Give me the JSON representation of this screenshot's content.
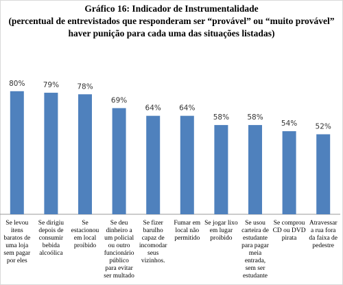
{
  "chart_data": {
    "type": "bar",
    "title": "Gráfico 16: Indicador de Instrumentalidade",
    "subtitle": [
      "(percentual de entrevistados que responderam ser “provável” ou “muito provável”",
      "haver punição para cada uma das situações listadas)"
    ],
    "categories": [
      [
        "Se levou",
        "itens",
        "baratos de",
        "uma loja",
        "sem pagar",
        "por eles"
      ],
      [
        "Se dirigiu",
        "depois de",
        "consumir",
        "bebida",
        "alcoólica"
      ],
      [
        "Se",
        "estacionou",
        "em local",
        "proibido"
      ],
      [
        "Se deu",
        "dinheiro a",
        "um policial",
        "ou outro",
        "funcionário",
        "público",
        "para evitar",
        "ser multado"
      ],
      [
        "Se fizer",
        "barulho",
        "capaz de",
        "incomodar",
        "seus",
        "vizinhos."
      ],
      [
        "Fumar em",
        "local não",
        "permitido"
      ],
      [
        "Se jogar lixo",
        "em lugar",
        "proibido"
      ],
      [
        "Se usou",
        "carteira de",
        "estudante",
        "para pagar",
        "meia",
        "entrada,",
        "sem ser",
        "estudante"
      ],
      [
        "Se comprou",
        "CD ou DVD",
        "pirata"
      ],
      [
        "Atravessar",
        "a rua fora",
        "da faixa de",
        "pedestre"
      ]
    ],
    "values": [
      80,
      79,
      78,
      69,
      64,
      64,
      58,
      58,
      54,
      52
    ],
    "value_labels": [
      "80%",
      "79%",
      "78%",
      "69%",
      "64%",
      "64%",
      "58%",
      "58%",
      "54%",
      "52%"
    ],
    "color": "#4f81bd",
    "ylim": [
      0,
      100
    ]
  }
}
